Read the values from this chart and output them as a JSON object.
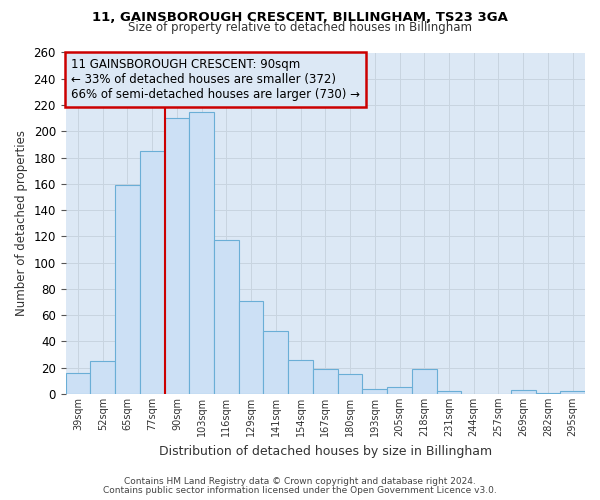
{
  "title1": "11, GAINSBOROUGH CRESCENT, BILLINGHAM, TS23 3GA",
  "title2": "Size of property relative to detached houses in Billingham",
  "xlabel": "Distribution of detached houses by size in Billingham",
  "ylabel": "Number of detached properties",
  "categories": [
    "39sqm",
    "52sqm",
    "65sqm",
    "77sqm",
    "90sqm",
    "103sqm",
    "116sqm",
    "129sqm",
    "141sqm",
    "154sqm",
    "167sqm",
    "180sqm",
    "193sqm",
    "205sqm",
    "218sqm",
    "231sqm",
    "244sqm",
    "257sqm",
    "269sqm",
    "282sqm",
    "295sqm"
  ],
  "values": [
    16,
    25,
    159,
    185,
    210,
    215,
    117,
    71,
    48,
    26,
    19,
    15,
    4,
    5,
    19,
    2,
    0,
    0,
    3,
    1,
    2
  ],
  "bar_color": "#cce0f5",
  "bar_edge_color": "#6aaed6",
  "grid_color": "#c8d4e0",
  "plot_bg_color": "#dce8f5",
  "fig_bg_color": "#ffffff",
  "vline_x_index": 4,
  "vline_color": "#cc0000",
  "annotation_text": "11 GAINSBOROUGH CRESCENT: 90sqm\n← 33% of detached houses are smaller (372)\n66% of semi-detached houses are larger (730) →",
  "annotation_box_edge_color": "#cc0000",
  "ylim": [
    0,
    260
  ],
  "yticks": [
    0,
    20,
    40,
    60,
    80,
    100,
    120,
    140,
    160,
    180,
    200,
    220,
    240,
    260
  ],
  "footer1": "Contains HM Land Registry data © Crown copyright and database right 2024.",
  "footer2": "Contains public sector information licensed under the Open Government Licence v3.0."
}
